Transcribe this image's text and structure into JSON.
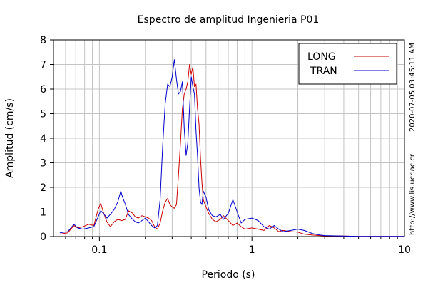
{
  "chart_data": {
    "type": "line",
    "title": "Espectro de amplitud Ingenieria P01",
    "xlabel": "Periodo (s)",
    "ylabel": "Amplitud (cm/s)",
    "xscale": "log",
    "xlim": [
      0.05,
      10
    ],
    "ylim": [
      0,
      8
    ],
    "xticks": [
      0.1,
      1,
      10
    ],
    "xtick_labels": [
      "0.1",
      "1",
      "10"
    ],
    "yticks": [
      0,
      1,
      2,
      3,
      4,
      5,
      6,
      7,
      8
    ],
    "ytick_labels": [
      "0",
      "1",
      "2",
      "3",
      "4",
      "5",
      "6",
      "7",
      "8"
    ],
    "grid": true,
    "legend_position": "top-right",
    "side_notes": [
      "2020-07-05 03:45:11 AM",
      "http://www.lis.ucr.ac.cr"
    ],
    "series": [
      {
        "name": "LONG",
        "color": "#cc0000",
        "x": [
          0.055,
          0.062,
          0.068,
          0.072,
          0.078,
          0.085,
          0.092,
          0.098,
          0.102,
          0.106,
          0.112,
          0.118,
          0.125,
          0.132,
          0.14,
          0.148,
          0.155,
          0.165,
          0.172,
          0.18,
          0.19,
          0.2,
          0.21,
          0.22,
          0.23,
          0.24,
          0.25,
          0.26,
          0.27,
          0.28,
          0.29,
          0.3,
          0.31,
          0.32,
          0.33,
          0.34,
          0.35,
          0.36,
          0.37,
          0.38,
          0.39,
          0.4,
          0.41,
          0.42,
          0.43,
          0.44,
          0.45,
          0.46,
          0.47,
          0.48,
          0.5,
          0.52,
          0.55,
          0.58,
          0.62,
          0.65,
          0.7,
          0.75,
          0.8,
          0.85,
          0.9,
          1.0,
          1.1,
          1.2,
          1.3,
          1.4,
          1.5,
          1.6,
          1.8,
          2.0,
          2.2,
          2.5,
          2.8,
          3.0,
          4.0,
          5.0,
          7.0,
          10.0
        ],
        "y": [
          0.1,
          0.15,
          0.45,
          0.35,
          0.4,
          0.5,
          0.45,
          1.1,
          1.35,
          1.0,
          0.6,
          0.4,
          0.6,
          0.7,
          0.65,
          0.7,
          1.05,
          0.95,
          0.8,
          0.75,
          0.85,
          0.8,
          0.75,
          0.65,
          0.4,
          0.3,
          0.55,
          1.05,
          1.4,
          1.55,
          1.3,
          1.2,
          1.15,
          1.3,
          2.5,
          3.8,
          5.2,
          5.8,
          6.0,
          6.3,
          7.0,
          6.6,
          6.9,
          6.1,
          6.2,
          5.2,
          4.6,
          3.2,
          2.2,
          1.5,
          1.2,
          0.95,
          0.7,
          0.6,
          0.7,
          0.85,
          0.65,
          0.45,
          0.55,
          0.4,
          0.3,
          0.35,
          0.3,
          0.25,
          0.45,
          0.35,
          0.2,
          0.25,
          0.2,
          0.18,
          0.1,
          0.06,
          0.04,
          0.03,
          0.02,
          0.01,
          0.01,
          0.01
        ]
      },
      {
        "name": "TRAN",
        "color": "#0000cc",
        "x": [
          0.055,
          0.062,
          0.068,
          0.072,
          0.078,
          0.085,
          0.092,
          0.098,
          0.102,
          0.106,
          0.112,
          0.118,
          0.125,
          0.132,
          0.138,
          0.142,
          0.148,
          0.155,
          0.165,
          0.172,
          0.18,
          0.19,
          0.2,
          0.21,
          0.22,
          0.23,
          0.24,
          0.25,
          0.26,
          0.27,
          0.28,
          0.29,
          0.3,
          0.31,
          0.32,
          0.33,
          0.34,
          0.35,
          0.36,
          0.37,
          0.38,
          0.39,
          0.4,
          0.41,
          0.42,
          0.43,
          0.44,
          0.45,
          0.46,
          0.47,
          0.48,
          0.5,
          0.52,
          0.55,
          0.58,
          0.62,
          0.65,
          0.7,
          0.75,
          0.8,
          0.85,
          0.9,
          1.0,
          1.1,
          1.2,
          1.3,
          1.4,
          1.5,
          1.6,
          1.8,
          2.0,
          2.2,
          2.5,
          2.8,
          3.0,
          4.0,
          5.0,
          7.0,
          10.0
        ],
        "y": [
          0.15,
          0.2,
          0.5,
          0.35,
          0.3,
          0.35,
          0.4,
          0.8,
          1.05,
          0.95,
          0.75,
          0.9,
          1.1,
          1.4,
          1.85,
          1.6,
          1.3,
          0.9,
          0.7,
          0.6,
          0.55,
          0.65,
          0.75,
          0.6,
          0.45,
          0.35,
          0.45,
          1.5,
          3.7,
          5.4,
          6.2,
          6.1,
          6.5,
          7.2,
          6.4,
          5.8,
          5.9,
          6.3,
          4.4,
          3.3,
          3.8,
          5.2,
          6.5,
          6.1,
          5.8,
          4.3,
          3.3,
          2.0,
          1.4,
          1.3,
          1.85,
          1.6,
          1.1,
          0.85,
          0.8,
          0.9,
          0.7,
          0.95,
          1.5,
          1.0,
          0.55,
          0.7,
          0.75,
          0.65,
          0.4,
          0.3,
          0.45,
          0.3,
          0.2,
          0.25,
          0.3,
          0.25,
          0.12,
          0.06,
          0.04,
          0.02,
          0.01,
          0.01,
          0.01
        ]
      }
    ]
  }
}
